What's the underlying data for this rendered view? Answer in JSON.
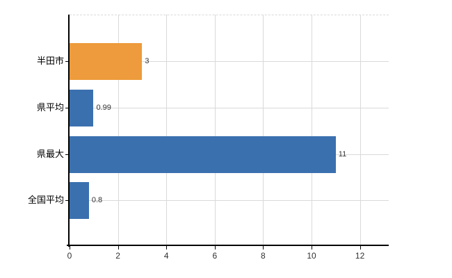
{
  "chart_data": {
    "type": "bar",
    "orientation": "horizontal",
    "title": "",
    "xlabel": "",
    "ylabel": "",
    "categories": [
      "半田市",
      "県平均",
      "県最大",
      "全国平均"
    ],
    "values": [
      3,
      0.99,
      11,
      0.8
    ],
    "value_labels": [
      "3",
      "0.99",
      "11",
      "0.8"
    ],
    "x_ticks": [
      0,
      2,
      4,
      6,
      8,
      10,
      12
    ],
    "x_tick_labels": [
      "0",
      "2",
      "4",
      "6",
      "8",
      "10",
      "12"
    ],
    "xlim": [
      0,
      13.2
    ],
    "grid": true,
    "legend": false,
    "highlighted_category": "半田市"
  },
  "colors": {
    "highlight_bar": "#ED9B3C",
    "default_bar": "#3B70AF",
    "gridline": "#D9D9D9",
    "axis": "#000000"
  }
}
